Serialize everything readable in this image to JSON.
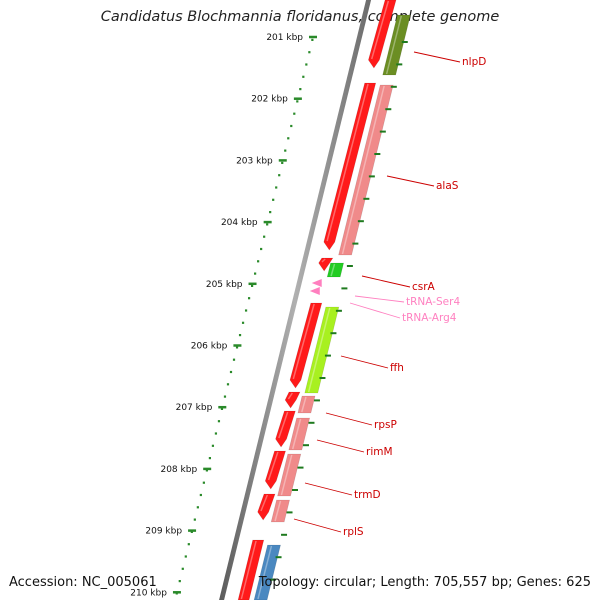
{
  "title": "Candidatus Blochmannia floridanus, complete genome",
  "footer": {
    "accession": "Accession: NC_005061",
    "summary": "Topology: circular; Length: 705,557 bp; Genes: 625"
  },
  "colors": {
    "backbone": "#8a8a8a",
    "ruler": "#2a8a2a",
    "forward_strand_cds": "#ff1a1a",
    "cds_light": "#f08a8a",
    "trna": "#ff7fbf",
    "label_red": "#cc0000",
    "label_pink": "#ff80c0"
  },
  "ruler": {
    "unit": "kbp",
    "ticks": [
      {
        "kbp": 201,
        "label": "201 kbp"
      },
      {
        "kbp": 202,
        "label": "202 kbp"
      },
      {
        "kbp": 203,
        "label": "203 kbp"
      },
      {
        "kbp": 204,
        "label": "204 kbp"
      },
      {
        "kbp": 205,
        "label": "205 kbp"
      },
      {
        "kbp": 206,
        "label": "206 kbp"
      },
      {
        "kbp": 207,
        "label": "207 kbp"
      },
      {
        "kbp": 208,
        "label": "208 kbp"
      },
      {
        "kbp": 209,
        "label": "209 kbp"
      },
      {
        "kbp": 210,
        "label": "210 kbp"
      }
    ]
  },
  "features": [
    {
      "name": "nlpD",
      "type": "CDS",
      "color": "#6b8e23",
      "label_color": "#cc0000"
    },
    {
      "name": "alaS",
      "type": "CDS",
      "color": "#f08a8a",
      "label_color": "#cc0000"
    },
    {
      "name": "csrA",
      "type": "CDS",
      "color": "#22cc22",
      "label_color": "#cc0000"
    },
    {
      "name": "tRNA-Ser4",
      "type": "tRNA",
      "color": "#ff7fbf",
      "label_color": "#ff80c0"
    },
    {
      "name": "tRNA-Arg4",
      "type": "tRNA",
      "color": "#ff7fbf",
      "label_color": "#ff80c0"
    },
    {
      "name": "ffh",
      "type": "CDS",
      "color": "#a8f020",
      "label_color": "#cc0000"
    },
    {
      "name": "rpsP",
      "type": "CDS",
      "color": "#f08a8a",
      "label_color": "#cc0000"
    },
    {
      "name": "rimM",
      "type": "CDS",
      "color": "#f08a8a",
      "label_color": "#cc0000"
    },
    {
      "name": "trmD",
      "type": "CDS",
      "color": "#f08a8a",
      "label_color": "#cc0000"
    },
    {
      "name": "rplS",
      "type": "CDS",
      "color": "#f08a8a",
      "label_color": "#cc0000"
    }
  ]
}
